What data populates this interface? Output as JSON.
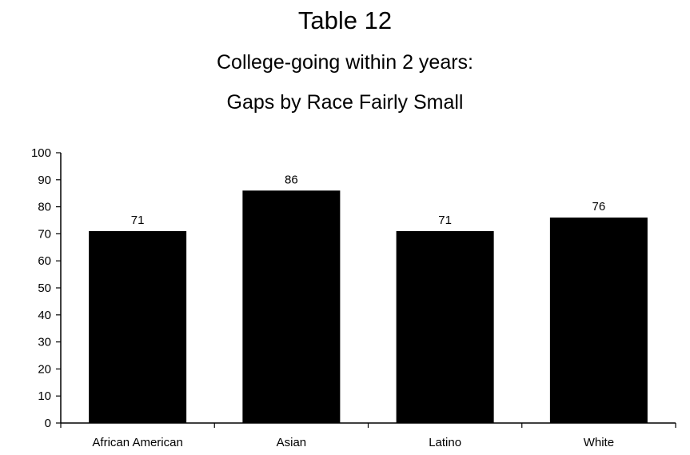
{
  "title": "Table  12",
  "subtitle_line1": "College-going within 2 years:",
  "subtitle_line2": "Gaps by Race Fairly Small",
  "chart_data": {
    "type": "bar",
    "categories": [
      "African American",
      "Asian",
      "Latino",
      "White"
    ],
    "values": [
      71,
      86,
      71,
      76
    ],
    "data_labels": [
      "71",
      "86",
      "71",
      "76"
    ],
    "ylim": [
      0,
      100
    ],
    "yticks": [
      0,
      10,
      20,
      30,
      40,
      50,
      60,
      70,
      80,
      90,
      100
    ],
    "grid": false,
    "legend": "none",
    "bar_color": "#000000"
  }
}
